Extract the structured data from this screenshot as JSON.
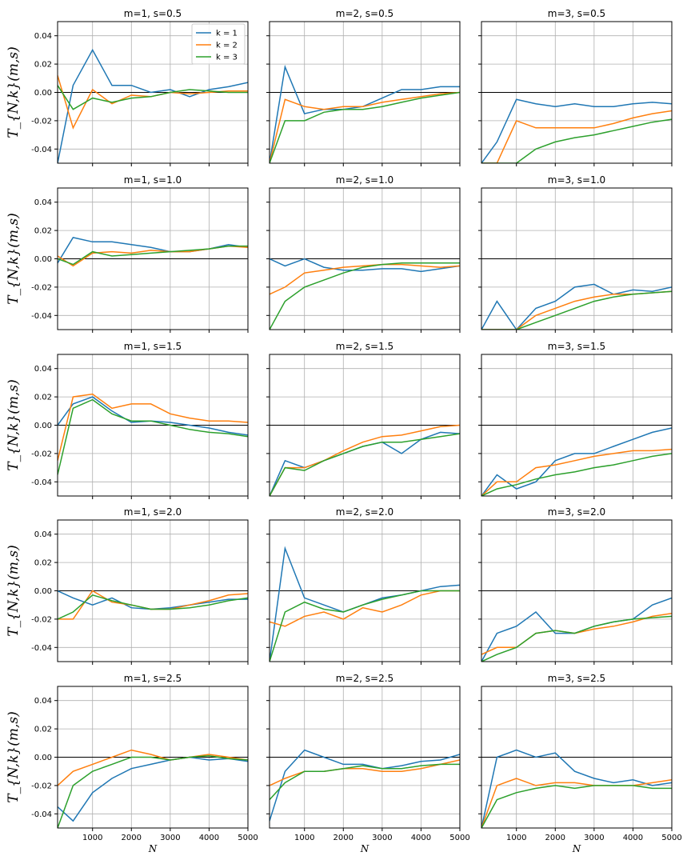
{
  "chart_data": {
    "type": "line",
    "ylabel": "T_{N,k}(m,s)",
    "xlabel": "N",
    "xlim": [
      100,
      5000
    ],
    "ylim": [
      -0.05,
      0.05
    ],
    "x_ticks": [
      1000,
      2000,
      3000,
      4000,
      5000
    ],
    "x_tick_labels": [
      "1000",
      "2000",
      "3000",
      "4000",
      "5000"
    ],
    "y_ticks": [
      -0.04,
      -0.02,
      0.0,
      0.02,
      0.04
    ],
    "y_tick_labels": [
      "-0.04",
      "-0.02",
      "0.00",
      "0.02",
      "0.04"
    ],
    "x_points": [
      100,
      500,
      1000,
      1500,
      2000,
      2500,
      3000,
      3500,
      4000,
      4500,
      5000
    ],
    "legend": {
      "position": "upper-right of first panel",
      "entries": [
        {
          "label": "k = 1",
          "color": "#1f77b4"
        },
        {
          "label": "k = 2",
          "color": "#ff7f0e"
        },
        {
          "label": "k = 3",
          "color": "#2ca02c"
        }
      ]
    },
    "reference_line": 0.0,
    "panels": [
      {
        "title": "m=1, s=0.5",
        "series": [
          {
            "name": "k = 1",
            "values": [
              -0.05,
              0.005,
              0.03,
              0.005,
              0.005,
              0.0,
              0.002,
              -0.003,
              0.002,
              0.004,
              0.007
            ]
          },
          {
            "name": "k = 2",
            "values": [
              0.012,
              -0.025,
              0.002,
              -0.008,
              -0.002,
              -0.003,
              0.0,
              -0.001,
              0.0,
              0.001,
              0.001
            ]
          },
          {
            "name": "k = 3",
            "values": [
              0.005,
              -0.012,
              -0.004,
              -0.007,
              -0.004,
              -0.003,
              0.0,
              0.002,
              0.001,
              0.0,
              0.0
            ]
          }
        ]
      },
      {
        "title": "m=2, s=0.5",
        "series": [
          {
            "name": "k = 1",
            "values": [
              -0.05,
              0.018,
              -0.015,
              -0.012,
              -0.012,
              -0.01,
              -0.004,
              0.002,
              0.002,
              0.004,
              0.004
            ]
          },
          {
            "name": "k = 2",
            "values": [
              -0.05,
              -0.005,
              -0.01,
              -0.012,
              -0.01,
              -0.01,
              -0.007,
              -0.005,
              -0.003,
              -0.001,
              0.0
            ]
          },
          {
            "name": "k = 3",
            "values": [
              -0.05,
              -0.02,
              -0.02,
              -0.014,
              -0.012,
              -0.012,
              -0.01,
              -0.007,
              -0.004,
              -0.002,
              0.0
            ]
          }
        ]
      },
      {
        "title": "m=3, s=0.5",
        "series": [
          {
            "name": "k = 1",
            "values": [
              -0.05,
              -0.035,
              -0.005,
              -0.008,
              -0.01,
              -0.008,
              -0.01,
              -0.01,
              -0.008,
              -0.007,
              -0.008
            ]
          },
          {
            "name": "k = 2",
            "values": [
              -0.05,
              -0.05,
              -0.02,
              -0.025,
              -0.025,
              -0.025,
              -0.025,
              -0.022,
              -0.018,
              -0.015,
              -0.013
            ]
          },
          {
            "name": "k = 3",
            "values": [
              -0.05,
              -0.05,
              -0.05,
              -0.04,
              -0.035,
              -0.032,
              -0.03,
              -0.027,
              -0.024,
              -0.021,
              -0.019
            ]
          }
        ]
      },
      {
        "title": "m=1, s=1.0",
        "series": [
          {
            "name": "k = 1",
            "values": [
              -0.003,
              0.015,
              0.012,
              0.012,
              0.01,
              0.008,
              0.005,
              0.005,
              0.007,
              0.01,
              0.008
            ]
          },
          {
            "name": "k = 2",
            "values": [
              0.002,
              -0.005,
              0.004,
              0.005,
              0.004,
              0.006,
              0.005,
              0.005,
              0.007,
              0.009,
              0.008
            ]
          },
          {
            "name": "k = 3",
            "values": [
              0.0,
              -0.004,
              0.005,
              0.002,
              0.003,
              0.004,
              0.005,
              0.006,
              0.007,
              0.009,
              0.009
            ]
          }
        ]
      },
      {
        "title": "m=2, s=1.0",
        "series": [
          {
            "name": "k = 1",
            "values": [
              0.0,
              -0.005,
              0.0,
              -0.006,
              -0.008,
              -0.008,
              -0.007,
              -0.007,
              -0.009,
              -0.007,
              -0.005
            ]
          },
          {
            "name": "k = 2",
            "values": [
              -0.025,
              -0.02,
              -0.01,
              -0.008,
              -0.006,
              -0.005,
              -0.004,
              -0.004,
              -0.005,
              -0.006,
              -0.005
            ]
          },
          {
            "name": "k = 3",
            "values": [
              -0.05,
              -0.03,
              -0.02,
              -0.015,
              -0.01,
              -0.006,
              -0.004,
              -0.003,
              -0.003,
              -0.003,
              -0.003
            ]
          }
        ]
      },
      {
        "title": "m=3, s=1.0",
        "series": [
          {
            "name": "k = 1",
            "values": [
              -0.05,
              -0.03,
              -0.05,
              -0.035,
              -0.03,
              -0.02,
              -0.018,
              -0.025,
              -0.022,
              -0.023,
              -0.02
            ]
          },
          {
            "name": "k = 2",
            "values": [
              -0.05,
              -0.05,
              -0.05,
              -0.04,
              -0.035,
              -0.03,
              -0.027,
              -0.025,
              -0.025,
              -0.024,
              -0.023
            ]
          },
          {
            "name": "k = 3",
            "values": [
              -0.05,
              -0.05,
              -0.05,
              -0.045,
              -0.04,
              -0.035,
              -0.03,
              -0.027,
              -0.025,
              -0.024,
              -0.023
            ]
          }
        ]
      },
      {
        "title": "m=1, s=1.5",
        "series": [
          {
            "name": "k = 1",
            "values": [
              0.0,
              0.015,
              0.02,
              0.01,
              0.002,
              0.003,
              0.002,
              0.0,
              -0.002,
              -0.005,
              -0.007
            ]
          },
          {
            "name": "k = 2",
            "values": [
              -0.025,
              0.02,
              0.022,
              0.012,
              0.015,
              0.015,
              0.008,
              0.005,
              0.003,
              0.003,
              0.002
            ]
          },
          {
            "name": "k = 3",
            "values": [
              -0.035,
              0.012,
              0.018,
              0.008,
              0.003,
              0.003,
              0.0,
              -0.003,
              -0.005,
              -0.006,
              -0.008
            ]
          }
        ]
      },
      {
        "title": "m=2, s=1.5",
        "series": [
          {
            "name": "k = 1",
            "values": [
              -0.05,
              -0.025,
              -0.03,
              -0.025,
              -0.02,
              -0.015,
              -0.012,
              -0.02,
              -0.01,
              -0.005,
              -0.006
            ]
          },
          {
            "name": "k = 2",
            "values": [
              -0.05,
              -0.03,
              -0.03,
              -0.025,
              -0.018,
              -0.012,
              -0.008,
              -0.007,
              -0.004,
              -0.001,
              0.0
            ]
          },
          {
            "name": "k = 3",
            "values": [
              -0.05,
              -0.03,
              -0.032,
              -0.025,
              -0.02,
              -0.015,
              -0.012,
              -0.012,
              -0.01,
              -0.008,
              -0.006
            ]
          }
        ]
      },
      {
        "title": "m=3, s=1.5",
        "series": [
          {
            "name": "k = 1",
            "values": [
              -0.05,
              -0.035,
              -0.045,
              -0.04,
              -0.025,
              -0.02,
              -0.02,
              -0.015,
              -0.01,
              -0.005,
              -0.002
            ]
          },
          {
            "name": "k = 2",
            "values": [
              -0.05,
              -0.04,
              -0.04,
              -0.03,
              -0.028,
              -0.025,
              -0.022,
              -0.02,
              -0.018,
              -0.018,
              -0.017
            ]
          },
          {
            "name": "k = 3",
            "values": [
              -0.05,
              -0.045,
              -0.042,
              -0.038,
              -0.035,
              -0.033,
              -0.03,
              -0.028,
              -0.025,
              -0.022,
              -0.02
            ]
          }
        ]
      },
      {
        "title": "m=1, s=2.0",
        "series": [
          {
            "name": "k = 1",
            "values": [
              0.0,
              -0.005,
              -0.01,
              -0.005,
              -0.012,
              -0.013,
              -0.012,
              -0.01,
              -0.008,
              -0.006,
              -0.006
            ]
          },
          {
            "name": "k = 2",
            "values": [
              -0.02,
              -0.02,
              0.0,
              -0.008,
              -0.01,
              -0.013,
              -0.013,
              -0.01,
              -0.007,
              -0.003,
              -0.002
            ]
          },
          {
            "name": "k = 3",
            "values": [
              -0.02,
              -0.015,
              -0.003,
              -0.007,
              -0.01,
              -0.013,
              -0.013,
              -0.012,
              -0.01,
              -0.007,
              -0.005
            ]
          }
        ]
      },
      {
        "title": "m=2, s=2.0",
        "series": [
          {
            "name": "k = 1",
            "values": [
              -0.05,
              0.03,
              -0.005,
              -0.01,
              -0.015,
              -0.01,
              -0.005,
              -0.003,
              0.0,
              0.003,
              0.004
            ]
          },
          {
            "name": "k = 2",
            "values": [
              -0.022,
              -0.025,
              -0.018,
              -0.015,
              -0.02,
              -0.012,
              -0.015,
              -0.01,
              -0.003,
              0.0,
              0.0
            ]
          },
          {
            "name": "k = 3",
            "values": [
              -0.05,
              -0.015,
              -0.008,
              -0.013,
              -0.015,
              -0.01,
              -0.006,
              -0.003,
              0.0,
              0.0,
              0.0
            ]
          }
        ]
      },
      {
        "title": "m=3, s=2.0",
        "series": [
          {
            "name": "k = 1",
            "values": [
              -0.05,
              -0.03,
              -0.025,
              -0.015,
              -0.03,
              -0.03,
              -0.025,
              -0.022,
              -0.02,
              -0.01,
              -0.005
            ]
          },
          {
            "name": "k = 2",
            "values": [
              -0.045,
              -0.04,
              -0.04,
              -0.03,
              -0.028,
              -0.03,
              -0.027,
              -0.025,
              -0.022,
              -0.018,
              -0.016
            ]
          },
          {
            "name": "k = 3",
            "values": [
              -0.05,
              -0.045,
              -0.04,
              -0.03,
              -0.028,
              -0.03,
              -0.025,
              -0.022,
              -0.02,
              -0.019,
              -0.018
            ]
          }
        ]
      },
      {
        "title": "m=1, s=2.5",
        "series": [
          {
            "name": "k = 1",
            "values": [
              -0.035,
              -0.045,
              -0.025,
              -0.015,
              -0.008,
              -0.005,
              -0.002,
              0.0,
              -0.002,
              -0.001,
              -0.003
            ]
          },
          {
            "name": "k = 2",
            "values": [
              -0.02,
              -0.01,
              -0.005,
              0.0,
              0.005,
              0.002,
              -0.002,
              0.0,
              0.002,
              0.0,
              -0.002
            ]
          },
          {
            "name": "k = 3",
            "values": [
              -0.05,
              -0.02,
              -0.01,
              -0.005,
              0.0,
              0.0,
              -0.002,
              0.0,
              0.001,
              -0.001,
              -0.002
            ]
          }
        ]
      },
      {
        "title": "m=2, s=2.5",
        "series": [
          {
            "name": "k = 1",
            "values": [
              -0.045,
              -0.01,
              0.005,
              0.0,
              -0.005,
              -0.005,
              -0.008,
              -0.006,
              -0.003,
              -0.002,
              0.002
            ]
          },
          {
            "name": "k = 2",
            "values": [
              -0.02,
              -0.015,
              -0.01,
              -0.01,
              -0.008,
              -0.008,
              -0.01,
              -0.01,
              -0.008,
              -0.005,
              -0.002
            ]
          },
          {
            "name": "k = 3",
            "values": [
              -0.03,
              -0.018,
              -0.01,
              -0.01,
              -0.008,
              -0.006,
              -0.008,
              -0.008,
              -0.006,
              -0.005,
              -0.005
            ]
          }
        ]
      },
      {
        "title": "m=3, s=2.5",
        "series": [
          {
            "name": "k = 1",
            "values": [
              -0.05,
              0.0,
              0.005,
              0.0,
              0.003,
              -0.01,
              -0.015,
              -0.018,
              -0.016,
              -0.02,
              -0.018
            ]
          },
          {
            "name": "k = 2",
            "values": [
              -0.05,
              -0.02,
              -0.015,
              -0.02,
              -0.018,
              -0.018,
              -0.02,
              -0.02,
              -0.02,
              -0.018,
              -0.016
            ]
          },
          {
            "name": "k = 3",
            "values": [
              -0.05,
              -0.03,
              -0.025,
              -0.022,
              -0.02,
              -0.022,
              -0.02,
              -0.02,
              -0.02,
              -0.022,
              -0.022
            ]
          }
        ]
      }
    ]
  }
}
